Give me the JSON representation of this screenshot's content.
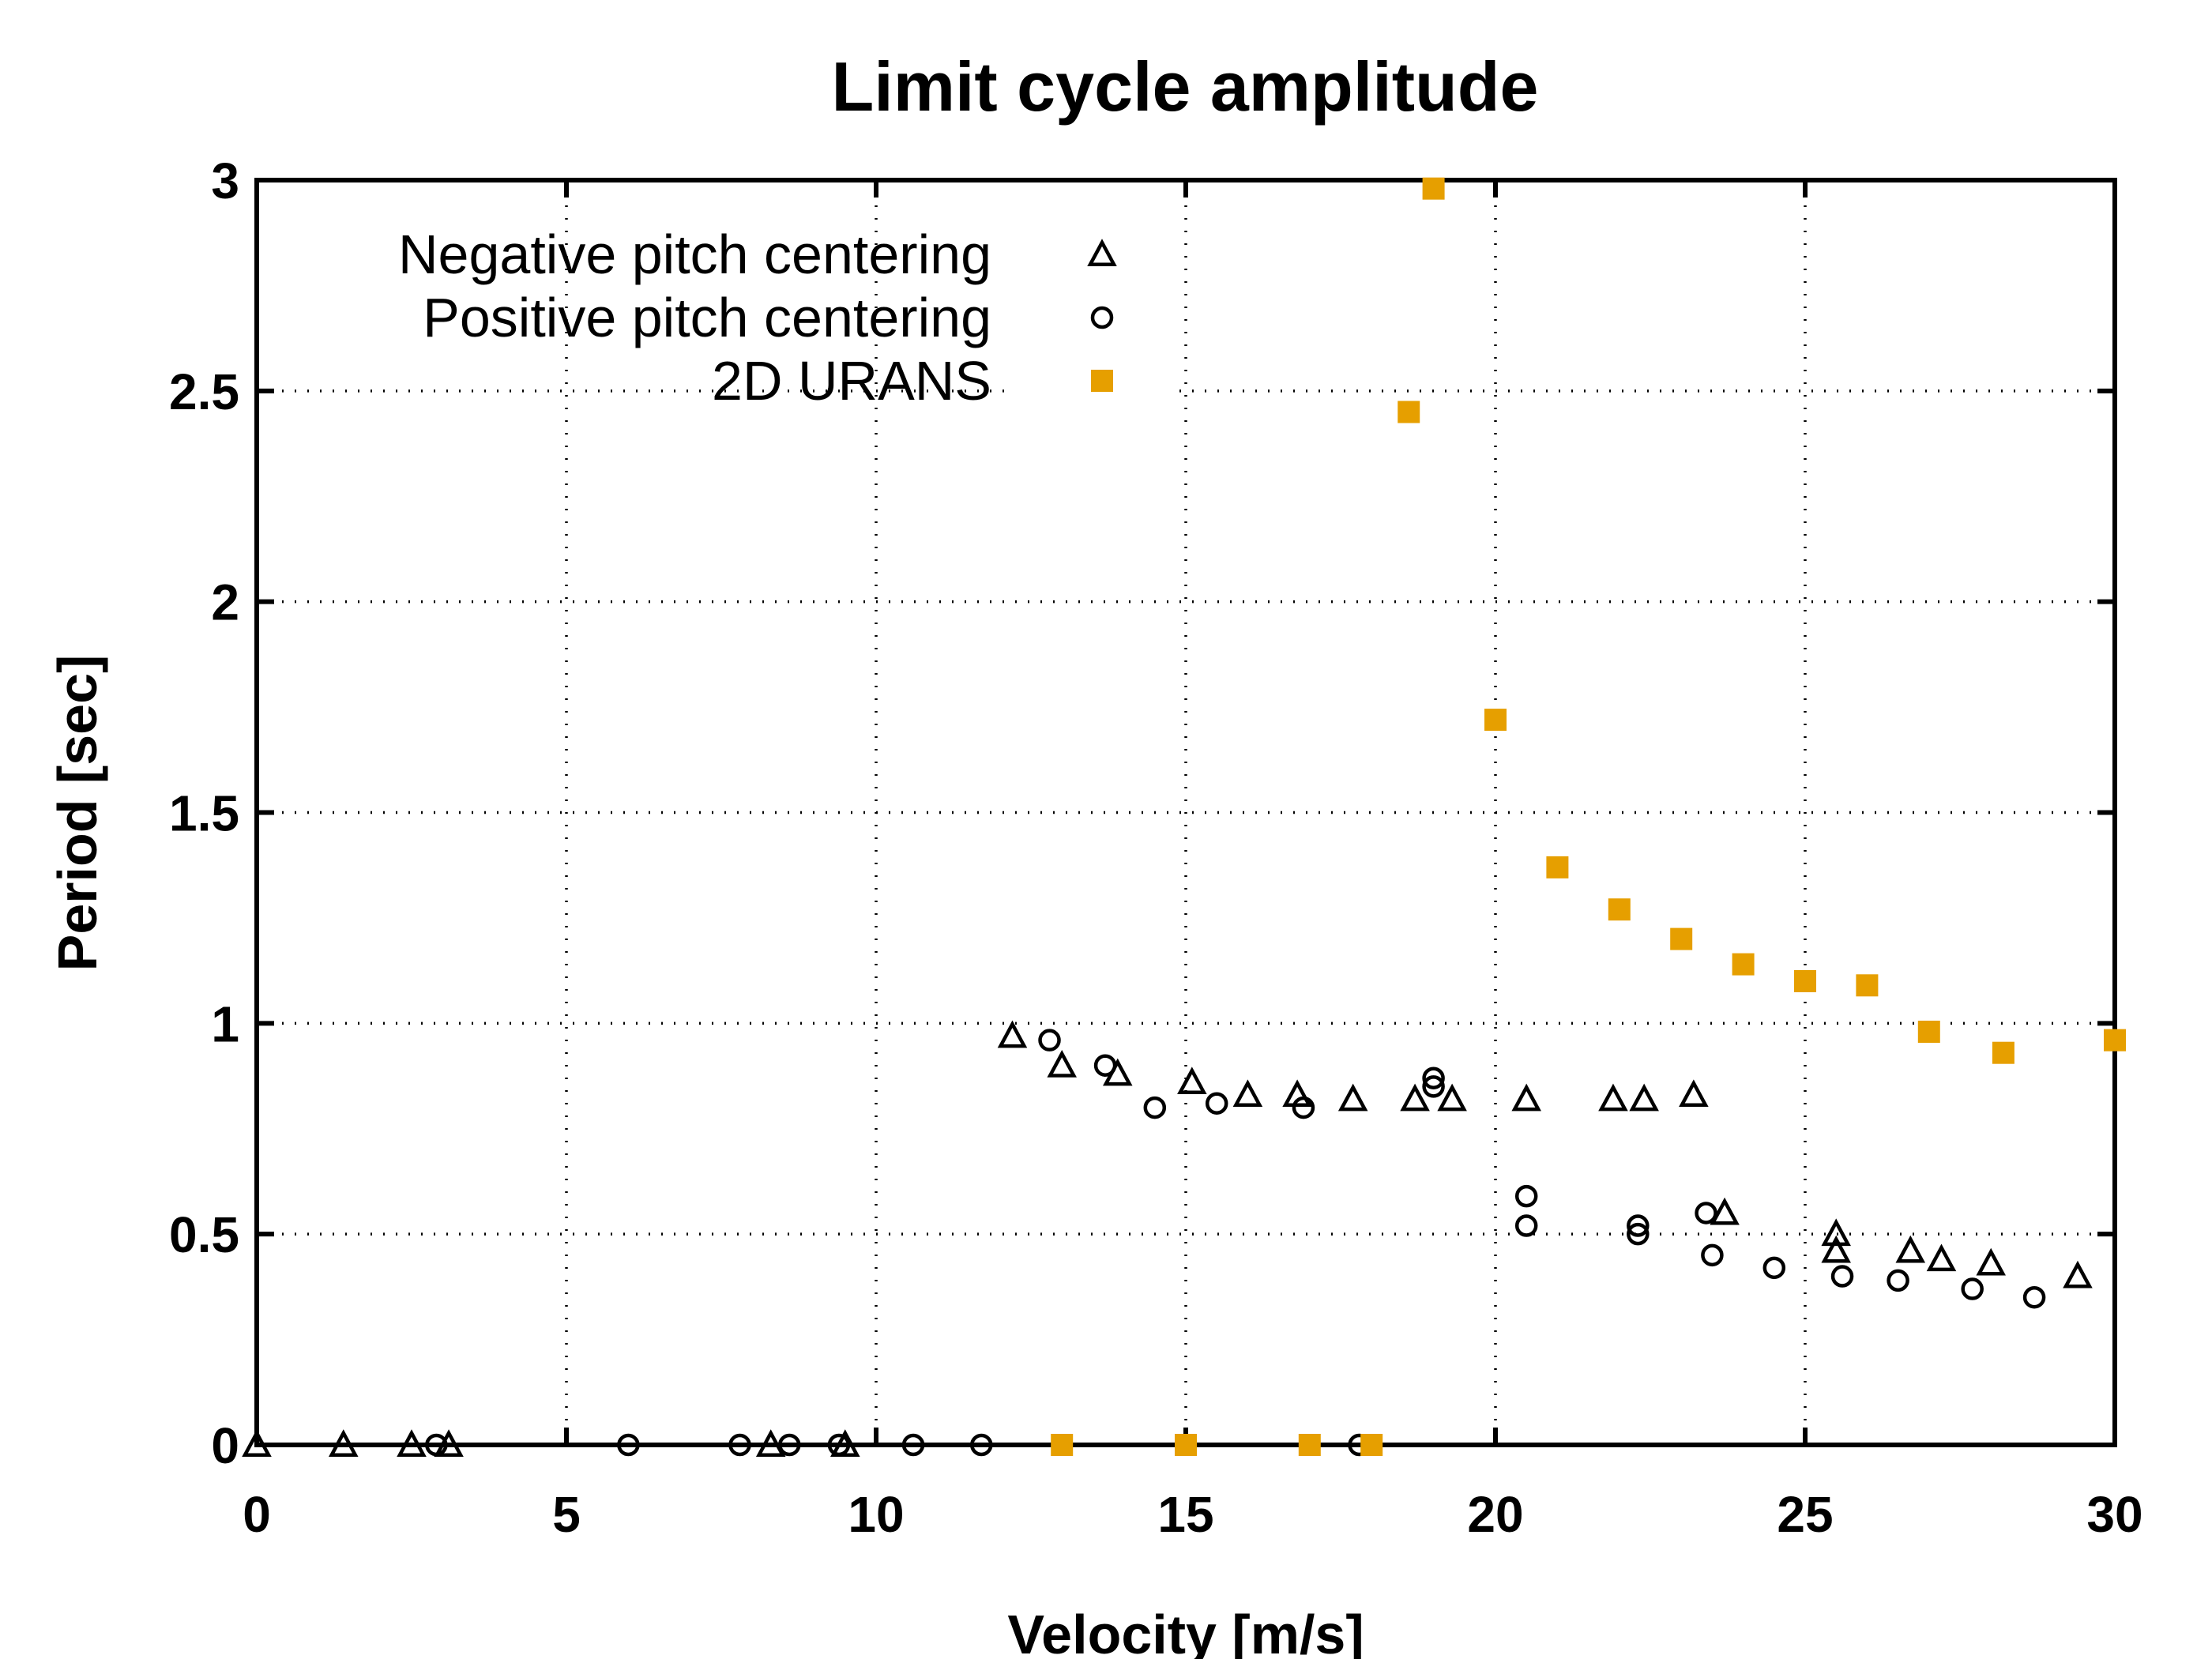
{
  "chart_data": {
    "type": "scatter",
    "title": "Limit cycle amplitude",
    "xlabel": "Velocity [m/s]",
    "ylabel": "Period [sec]",
    "xlim": [
      0,
      30
    ],
    "ylim": [
      0,
      3
    ],
    "xticks": [
      0,
      5,
      10,
      15,
      20,
      25,
      30
    ],
    "xtick_labels": [
      "0",
      "5",
      "10",
      "15",
      "20",
      "25",
      "30"
    ],
    "yticks": [
      0,
      0.5,
      1,
      1.5,
      2,
      2.5,
      3
    ],
    "ytick_labels": [
      "0",
      "0.5",
      "1",
      "1.5",
      "2",
      "2.5",
      "3"
    ],
    "grid": true,
    "legend_position": "top-left",
    "series": [
      {
        "name": "Negative pitch centering",
        "marker": "triangle-open",
        "color": "#000000",
        "points": [
          [
            0,
            0
          ],
          [
            1.4,
            0
          ],
          [
            2.5,
            0
          ],
          [
            3.1,
            0
          ],
          [
            8.3,
            0
          ],
          [
            9.5,
            0
          ],
          [
            12.2,
            0.97
          ],
          [
            13.0,
            0.9
          ],
          [
            13.9,
            0.88
          ],
          [
            15.1,
            0.86
          ],
          [
            16.0,
            0.83
          ],
          [
            16.8,
            0.83
          ],
          [
            17.7,
            0.82
          ],
          [
            18.7,
            0.82
          ],
          [
            19.3,
            0.82
          ],
          [
            20.5,
            0.82
          ],
          [
            21.9,
            0.82
          ],
          [
            22.4,
            0.82
          ],
          [
            23.2,
            0.83
          ],
          [
            23.7,
            0.55
          ],
          [
            25.5,
            0.5
          ],
          [
            25.5,
            0.46
          ],
          [
            26.7,
            0.46
          ],
          [
            27.2,
            0.44
          ],
          [
            28.0,
            0.43
          ],
          [
            29.4,
            0.4
          ]
        ]
      },
      {
        "name": "Positive pitch centering",
        "marker": "circle-open",
        "color": "#000000",
        "points": [
          [
            2.9,
            0
          ],
          [
            6.0,
            0
          ],
          [
            7.8,
            0
          ],
          [
            8.6,
            0
          ],
          [
            9.4,
            0
          ],
          [
            10.6,
            0
          ],
          [
            11.7,
            0
          ],
          [
            17.8,
            0
          ],
          [
            12.8,
            0.96
          ],
          [
            13.7,
            0.9
          ],
          [
            14.5,
            0.8
          ],
          [
            15.5,
            0.81
          ],
          [
            16.9,
            0.8
          ],
          [
            19.0,
            0.85
          ],
          [
            19.0,
            0.87
          ],
          [
            20.5,
            0.59
          ],
          [
            20.5,
            0.52
          ],
          [
            22.3,
            0.52
          ],
          [
            22.3,
            0.5
          ],
          [
            23.4,
            0.55
          ],
          [
            23.5,
            0.45
          ],
          [
            24.5,
            0.42
          ],
          [
            25.6,
            0.4
          ],
          [
            26.5,
            0.39
          ],
          [
            27.7,
            0.37
          ],
          [
            28.7,
            0.35
          ]
        ]
      },
      {
        "name": "2D URANS",
        "marker": "square-filled",
        "color": "#E69F00",
        "points": [
          [
            13,
            0
          ],
          [
            15,
            0
          ],
          [
            17,
            0
          ],
          [
            18,
            0
          ],
          [
            18.6,
            2.45
          ],
          [
            19.0,
            2.98
          ],
          [
            20,
            1.72
          ],
          [
            21,
            1.37
          ],
          [
            22,
            1.27
          ],
          [
            23,
            1.2
          ],
          [
            24,
            1.14
          ],
          [
            25,
            1.1
          ],
          [
            26,
            1.09
          ],
          [
            27,
            0.98
          ],
          [
            28.2,
            0.93
          ],
          [
            30,
            0.96
          ]
        ]
      }
    ]
  }
}
